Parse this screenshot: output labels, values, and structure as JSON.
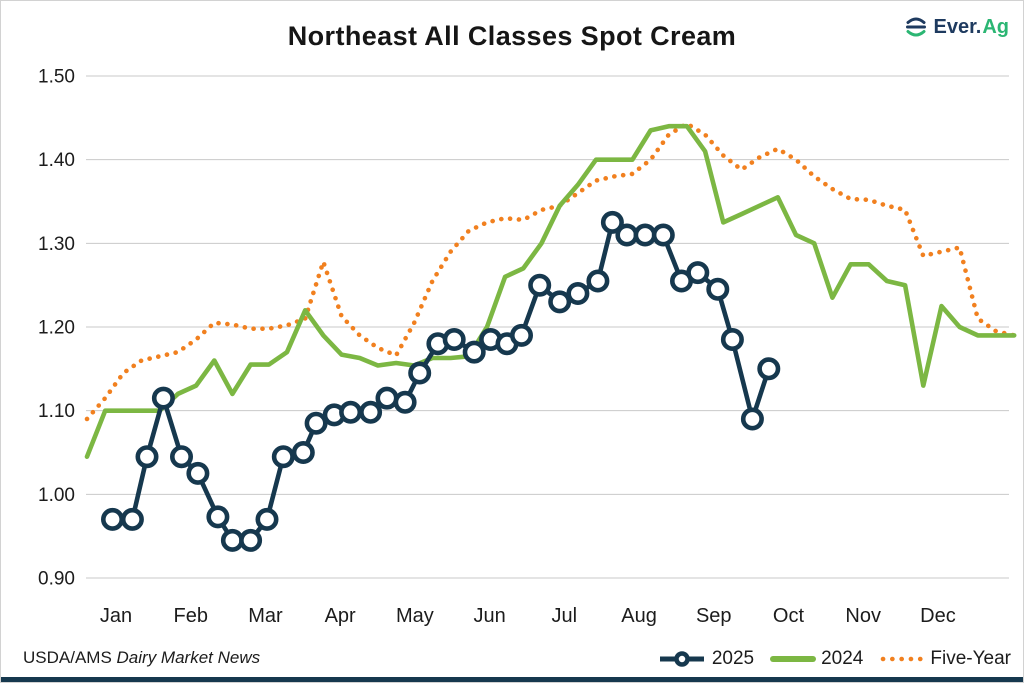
{
  "title": "Northeast All Classes Spot Cream",
  "logo": {
    "brand_primary": "Ever.",
    "brand_secondary": "Ag"
  },
  "footer": {
    "source_prefix": "USDA/AMS ",
    "source_name": "Dairy Market News"
  },
  "legend": {
    "items": [
      {
        "label": "2025"
      },
      {
        "label": "2024"
      },
      {
        "label": "Five-Year"
      }
    ]
  },
  "colors": {
    "navy": "#16384e",
    "green": "#7cb743",
    "orange": "#f1801f",
    "grid": "#c9c9c9",
    "text": "#1c1c1c",
    "logo_navy": "#1e3a5f",
    "logo_green": "#2bb673",
    "marker_fill": "#ffffff"
  },
  "chart_data": {
    "type": "line",
    "title": "Northeast All Classes Spot Cream",
    "xlabel": "",
    "ylabel": "",
    "grid": true,
    "legend_position": "bottom-right",
    "x_axis": {
      "unit": "week",
      "weeks_total": 52,
      "month_labels": [
        "Jan",
        "Feb",
        "Mar",
        "Apr",
        "May",
        "Jun",
        "Jul",
        "Aug",
        "Sep",
        "Oct",
        "Nov",
        "Dec"
      ]
    },
    "y_axis": {
      "min": 0.9,
      "max": 1.5,
      "tick_step": 0.1,
      "tick_labels": [
        "1.50",
        "1.40",
        "1.30",
        "1.20",
        "1.10",
        "1.00",
        "0.90"
      ]
    },
    "series": [
      {
        "name": "Five-Year",
        "color": "#f1801f",
        "style": "dotted",
        "marker": "none",
        "values": [
          1.09,
          1.115,
          1.145,
          1.16,
          1.165,
          1.17,
          1.185,
          1.205,
          1.203,
          1.198,
          1.198,
          1.202,
          1.21,
          1.278,
          1.213,
          1.19,
          1.175,
          1.166,
          1.205,
          1.255,
          1.29,
          1.315,
          1.325,
          1.33,
          1.328,
          1.34,
          1.345,
          1.36,
          1.375,
          1.38,
          1.383,
          1.4,
          1.43,
          1.443,
          1.43,
          1.405,
          1.388,
          1.403,
          1.413,
          1.4,
          1.38,
          1.365,
          1.353,
          1.352,
          1.345,
          1.34,
          1.285,
          1.29,
          1.295,
          1.21,
          1.195,
          1.19
        ]
      },
      {
        "name": "2024",
        "color": "#7cb743",
        "style": "solid",
        "marker": "none",
        "values": [
          1.045,
          1.1,
          1.1,
          1.1,
          1.1,
          1.12,
          1.13,
          1.16,
          1.12,
          1.155,
          1.155,
          1.17,
          1.22,
          1.19,
          1.167,
          1.163,
          1.154,
          1.157,
          1.154,
          1.163,
          1.163,
          1.165,
          1.2,
          1.26,
          1.27,
          1.3,
          1.345,
          1.37,
          1.4,
          1.4,
          1.4,
          1.435,
          1.44,
          1.44,
          1.41,
          1.325,
          1.335,
          1.345,
          1.355,
          1.31,
          1.3,
          1.235,
          1.275,
          1.275,
          1.255,
          1.25,
          1.13,
          1.225,
          1.2,
          1.19,
          1.19,
          1.19
        ]
      },
      {
        "name": "2025",
        "color": "#16384e",
        "style": "solid",
        "marker": "circle",
        "x_weeks": [
          2.4,
          3.5,
          4.3,
          5.2,
          6.2,
          7.1,
          8.2,
          9.0,
          10.0,
          10.9,
          11.8,
          12.9,
          13.6,
          14.6,
          15.5,
          16.6,
          17.5,
          18.5,
          19.3,
          20.3,
          21.2,
          22.3,
          23.2,
          24.1,
          24.9,
          25.9,
          27.0,
          28.0,
          29.1,
          29.9,
          30.7,
          31.7,
          32.7,
          33.7,
          34.6,
          35.7,
          36.5,
          37.6,
          38.5
        ],
        "values": [
          0.97,
          0.97,
          1.045,
          1.115,
          1.045,
          1.025,
          0.973,
          0.945,
          0.945,
          0.97,
          1.045,
          1.05,
          1.085,
          1.095,
          1.098,
          1.098,
          1.115,
          1.11,
          1.145,
          1.18,
          1.185,
          1.17,
          1.185,
          1.18,
          1.19,
          1.25,
          1.23,
          1.24,
          1.255,
          1.325,
          1.31,
          1.31,
          1.31,
          1.255,
          1.265,
          1.245,
          1.185,
          1.09,
          1.15
        ]
      }
    ]
  }
}
